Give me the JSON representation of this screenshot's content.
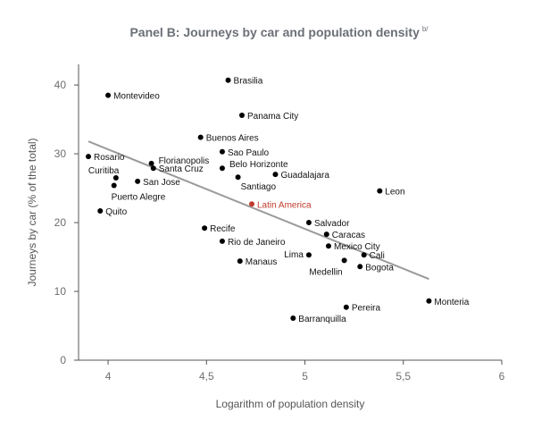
{
  "title": "Panel B: Journeys by car and population density",
  "title_note": "b/",
  "colors": {
    "point": "#000000",
    "highlight": "#c0392b",
    "trendline": "#9a9a9a",
    "axis": "#555555"
  },
  "chart_data": {
    "type": "scatter",
    "xlabel": "Logarithm of population density",
    "ylabel": "Journeys by car (% of the total)",
    "xlim": [
      3.85,
      6
    ],
    "ylim": [
      0,
      43
    ],
    "xticks": [
      4,
      4.5,
      5,
      5.5,
      6
    ],
    "xtick_labels": [
      "4",
      "4,5",
      "5",
      "5,5",
      "6"
    ],
    "yticks": [
      0,
      10,
      20,
      30,
      40
    ],
    "ytick_labels": [
      "0",
      "10",
      "20",
      "30",
      "40"
    ],
    "grid": false,
    "trendline": {
      "x": [
        3.9,
        5.63
      ],
      "y": [
        31.8,
        11.8
      ]
    },
    "points": [
      {
        "label": "Brasilia",
        "x": 4.61,
        "y": 40.7
      },
      {
        "label": "Montevideo",
        "x": 4.0,
        "y": 38.5
      },
      {
        "label": "Panama City",
        "x": 4.68,
        "y": 35.6
      },
      {
        "label": "Buenos Aires",
        "x": 4.47,
        "y": 32.4
      },
      {
        "label": "Rosario",
        "x": 3.9,
        "y": 29.6
      },
      {
        "label": "Florianopolis",
        "x": 4.22,
        "y": 28.6
      },
      {
        "label": "Sao Paulo",
        "x": 4.58,
        "y": 30.3
      },
      {
        "label": "Santa Cruz",
        "x": 4.23,
        "y": 27.9
      },
      {
        "label": "Belo Horizonte",
        "x": 4.58,
        "y": 27.9
      },
      {
        "label": "Curitiba",
        "x": 4.04,
        "y": 26.5
      },
      {
        "label": "San Jose",
        "x": 4.15,
        "y": 26.0
      },
      {
        "label": "Guadalajara",
        "x": 4.85,
        "y": 27.0
      },
      {
        "label": "Santiago",
        "x": 4.66,
        "y": 26.6
      },
      {
        "label": "Puerto Alegre",
        "x": 4.03,
        "y": 25.4
      },
      {
        "label": "Leon",
        "x": 5.38,
        "y": 24.6
      },
      {
        "label": "Latin America",
        "x": 4.73,
        "y": 22.7,
        "highlight": true
      },
      {
        "label": "Quito",
        "x": 3.96,
        "y": 21.7
      },
      {
        "label": "Salvador",
        "x": 5.02,
        "y": 20.0
      },
      {
        "label": "Recife",
        "x": 4.49,
        "y": 19.2
      },
      {
        "label": "Caracas",
        "x": 5.11,
        "y": 18.3
      },
      {
        "label": "Rio de Janeiro",
        "x": 4.58,
        "y": 17.3
      },
      {
        "label": "Mexico City",
        "x": 5.12,
        "y": 16.6
      },
      {
        "label": "Lima",
        "x": 5.02,
        "y": 15.3
      },
      {
        "label": "Cali",
        "x": 5.3,
        "y": 15.3
      },
      {
        "label": "Manaus",
        "x": 4.67,
        "y": 14.4
      },
      {
        "label": "Medellin",
        "x": 5.2,
        "y": 14.5
      },
      {
        "label": "Bogota",
        "x": 5.28,
        "y": 13.6
      },
      {
        "label": "Monteria",
        "x": 5.63,
        "y": 8.6
      },
      {
        "label": "Pereira",
        "x": 5.21,
        "y": 7.7
      },
      {
        "label": "Barranquilla",
        "x": 4.94,
        "y": 6.1
      }
    ]
  }
}
